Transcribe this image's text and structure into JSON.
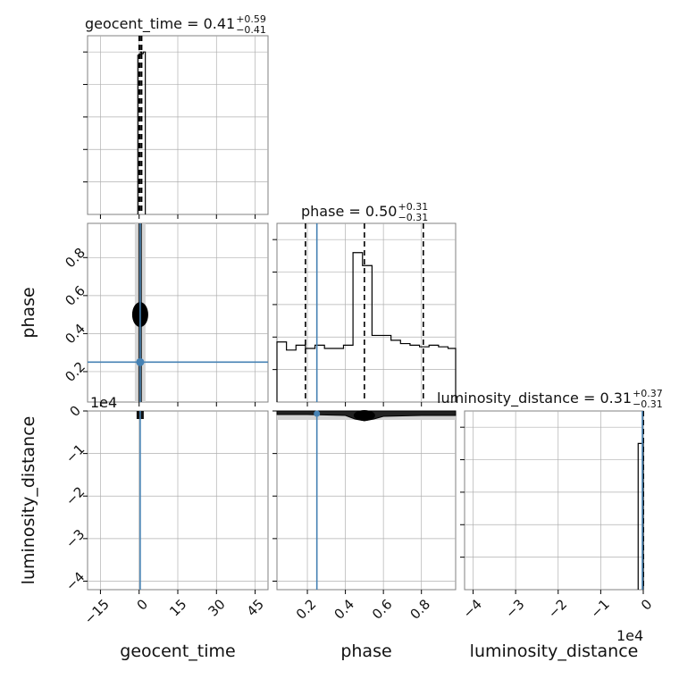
{
  "chart_data": {
    "type": "corner",
    "parameters": [
      "geocent_time",
      "phase",
      "luminosity_distance"
    ],
    "axis_labels": {
      "x": [
        "geocent_time",
        "phase",
        "luminosity_distance"
      ],
      "y": [
        "phase",
        "luminosity_distance"
      ]
    },
    "offset_labels": {
      "luminosity_distance_y": "1e4",
      "luminosity_distance_x": "1e4"
    },
    "titles": [
      {
        "param": "geocent_time",
        "text": "geocent_time = 0.41",
        "plus": "+0.59",
        "minus": "−0.41"
      },
      {
        "param": "phase",
        "text": "phase = 0.50",
        "plus": "+0.31",
        "minus": "−0.31"
      },
      {
        "param": "luminosity_distance",
        "text": "luminosity_distance = 0.31",
        "plus": "+0.37",
        "minus": "−0.31"
      }
    ],
    "ranges": {
      "geocent_time": [
        -20,
        50
      ],
      "phase": [
        0.04,
        0.98
      ],
      "luminosity_distance": [
        -42000,
        0
      ]
    },
    "ticks": {
      "geocent_time": {
        "values": [
          -15,
          0,
          15,
          30,
          45
        ],
        "labels": [
          "−15",
          "0",
          "15",
          "30",
          "45"
        ]
      },
      "phase": {
        "values": [
          0.2,
          0.4,
          0.6,
          0.8
        ],
        "labels": [
          "0.2",
          "0.4",
          "0.6",
          "0.8"
        ]
      },
      "luminosity_distance": {
        "values": [
          -40000,
          -30000,
          -20000,
          -10000,
          0
        ],
        "labels": [
          "−4",
          "−3",
          "−2",
          "−1",
          "0"
        ]
      }
    },
    "truths": {
      "geocent_time": 0.41,
      "phase": 0.25,
      "luminosity_distance": 0.31
    },
    "colors": {
      "truth": "#4682b4",
      "hist": "#000000",
      "contour_fill": "#d3d3d3",
      "contour_dark": "#000000",
      "grid": "#b0b0b0"
    },
    "histograms": {
      "geocent_time": {
        "bin_edges": [
          -0.5,
          0.5,
          1.0,
          1.6,
          2.4
        ],
        "heights": [
          0.98,
          1.0,
          0.99,
          1.0
        ],
        "ymax": 1.0,
        "quantiles": [
          0.0,
          0.41,
          1.0
        ]
      },
      "phase": {
        "bin_edges": [
          0.04,
          0.09,
          0.14,
          0.19,
          0.24,
          0.29,
          0.34,
          0.39,
          0.44,
          0.49,
          0.54,
          0.59,
          0.64,
          0.69,
          0.74,
          0.79,
          0.84,
          0.89,
          0.94,
          0.98
        ],
        "heights": [
          0.37,
          0.32,
          0.35,
          0.33,
          0.35,
          0.33,
          0.33,
          0.35,
          0.92,
          0.84,
          0.41,
          0.41,
          0.38,
          0.36,
          0.35,
          0.34,
          0.35,
          0.34,
          0.33
        ],
        "ymax": 1.0,
        "quantiles": [
          0.19,
          0.5,
          0.81
        ]
      },
      "luminosity_distance": {
        "bin_edges": [
          -1200,
          -400,
          0
        ],
        "heights": [
          0.9,
          0.9
        ],
        "ymax": 1.0,
        "quantiles": [
          0.0,
          0.31,
          0.68
        ]
      }
    },
    "grid": true
  }
}
